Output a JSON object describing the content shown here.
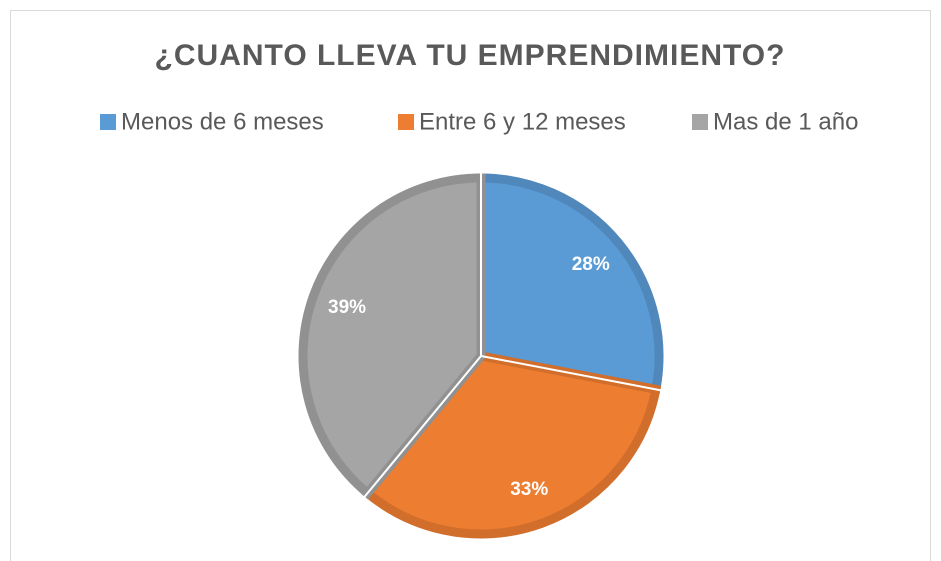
{
  "chart_data": {
    "type": "pie",
    "title": "¿CUANTO LLEVA TU EMPRENDIMIENTO?",
    "categories": [
      "Menos de 6 meses",
      "Entre 6 y 12 meses",
      "Mas de 1 año"
    ],
    "values": [
      28,
      33,
      39
    ],
    "value_labels": [
      "28%",
      "33%",
      "39%"
    ],
    "colors": [
      "#5b9bd5",
      "#ed7d31",
      "#a5a5a5"
    ],
    "legend": "top"
  }
}
